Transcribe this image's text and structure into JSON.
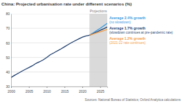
{
  "chart_data": {
    "type": "line",
    "title": "China: Projected urbanisation rate under different scenarios (%)",
    "source": "Sources: National Bureau of Statistics; Oxford Analytica calculations",
    "shaded_region": {
      "label": "Projections",
      "x": [
        2022,
        2027
      ]
    },
    "x": [
      2000,
      2001,
      2002,
      2003,
      2004,
      2005,
      2006,
      2007,
      2008,
      2009,
      2010,
      2011,
      2012,
      2013,
      2014,
      2015,
      2016,
      2017,
      2018,
      2019,
      2020,
      2021,
      2022,
      2023,
      2024,
      2025,
      2026,
      2027
    ],
    "xlim": [
      2000,
      2027
    ],
    "xticks": [
      2000,
      2005,
      2010,
      2015,
      2020,
      2025
    ],
    "ylim": [
      30,
      80
    ],
    "yticks": [
      30,
      40,
      50,
      60,
      70,
      80
    ],
    "grid": true,
    "series": [
      {
        "color": "#1f3f6e",
        "values": [
          36.2,
          37.7,
          39.1,
          40.5,
          41.8,
          43.0,
          44.3,
          45.9,
          47.0,
          48.3,
          49.9,
          51.8,
          53.1,
          54.5,
          55.8,
          57.3,
          58.8,
          60.2,
          61.5,
          62.7,
          63.9,
          64.7,
          65.2,
          null,
          null,
          null,
          null,
          null
        ]
      },
      {
        "name": "Average 2.4% growth",
        "note": "(no slowdown)",
        "color": "#3d9be0",
        "values": [
          null,
          null,
          null,
          null,
          null,
          null,
          null,
          null,
          null,
          null,
          null,
          null,
          null,
          null,
          null,
          null,
          null,
          null,
          null,
          null,
          null,
          null,
          65.2,
          66.8,
          68.4,
          70.0,
          71.7,
          73.4
        ]
      },
      {
        "name": "Average 1.7% growth",
        "note": "(slowdown continues at pre-pandemic rate)",
        "color": "#1f3f6e",
        "values": [
          null,
          null,
          null,
          null,
          null,
          null,
          null,
          null,
          null,
          null,
          null,
          null,
          null,
          null,
          null,
          null,
          null,
          null,
          null,
          null,
          null,
          null,
          65.2,
          66.3,
          67.4,
          68.6,
          69.7,
          70.9
        ]
      },
      {
        "name": "Average 1.2% growth",
        "note": "(2021-22 rate continues)",
        "color": "#f29d45",
        "values": [
          null,
          null,
          null,
          null,
          null,
          null,
          null,
          null,
          null,
          null,
          null,
          null,
          null,
          null,
          null,
          null,
          null,
          null,
          null,
          null,
          null,
          null,
          65.2,
          66.0,
          66.8,
          67.6,
          68.4,
          69.2
        ]
      }
    ]
  }
}
